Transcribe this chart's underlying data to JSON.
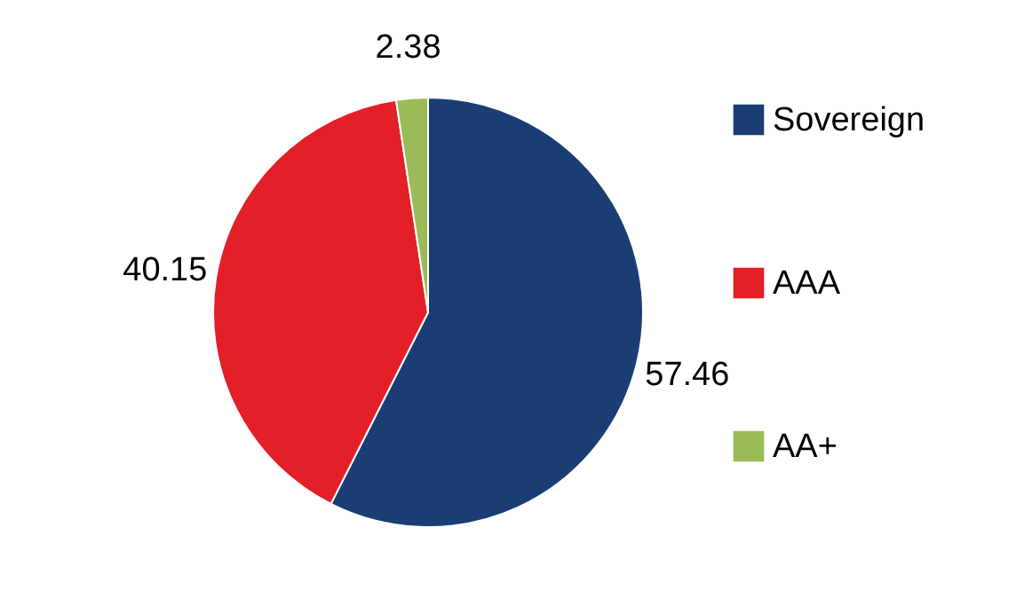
{
  "chart_data": {
    "type": "pie",
    "categories": [
      "Sovereign",
      "AAA",
      "AA+"
    ],
    "values": [
      57.46,
      40.15,
      2.38
    ],
    "colors": [
      "#1a3e73",
      "#e32028",
      "#9bbb59"
    ],
    "data_labels": true,
    "legend": "right"
  }
}
